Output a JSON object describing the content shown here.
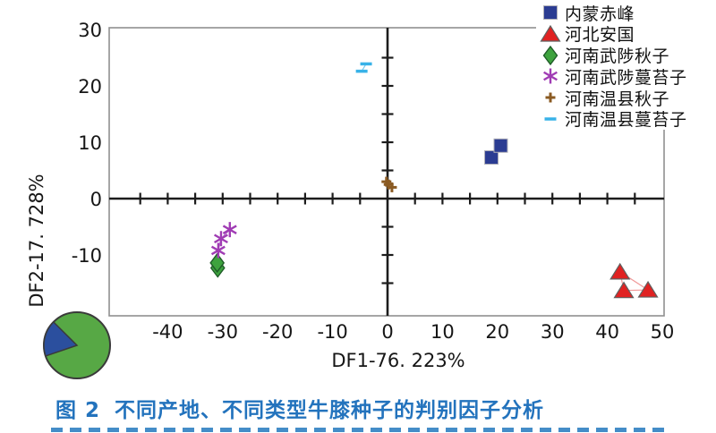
{
  "figure": {
    "caption_prefix": "图 2",
    "caption_text": "不同产地、不同类型牛膝种子的判别因子分析",
    "caption_color": "#2373bd"
  },
  "chart_data": {
    "type": "scatter",
    "title": "",
    "xlabel": "DF1-76. 223%",
    "ylabel": "DF2-17. 728%",
    "xlim": [
      -50.7,
      50.3
    ],
    "ylim": [
      -20.9,
      30.3
    ],
    "x_ticks_labeled": [
      -40,
      -30,
      -20,
      -10,
      0,
      10,
      20,
      30,
      40,
      50
    ],
    "y_ticks_labeled": [
      30,
      20,
      10,
      0,
      -10
    ],
    "minor_tick_step": 5,
    "grid": false,
    "legend_position": "top-right",
    "series": [
      {
        "name": "内蒙赤峰",
        "marker": "square",
        "color": "#2b3c92",
        "points": [
          [
            18.9,
            7.3
          ],
          [
            20.6,
            9.4
          ]
        ]
      },
      {
        "name": "河北安国",
        "marker": "triangle",
        "color": "#e02222",
        "connect": "loop",
        "line_color": "#f09a9a",
        "points": [
          [
            42.3,
            -13.0
          ],
          [
            43.0,
            -16.3
          ],
          [
            47.4,
            -16.2
          ]
        ]
      },
      {
        "name": "河南武陟秋子",
        "marker": "diamond",
        "color": "#3ea33e",
        "points": [
          [
            -30.9,
            -12.3
          ],
          [
            -31.0,
            -11.4
          ]
        ]
      },
      {
        "name": "河南武陟蔓苔子",
        "marker": "asterisk",
        "color": "#a03cb4",
        "connect": "chain",
        "line_color": "#b470c8",
        "points": [
          [
            -28.7,
            -5.5
          ],
          [
            -30.3,
            -7.1
          ],
          [
            -30.8,
            -9.2
          ]
        ]
      },
      {
        "name": "河南温县秋子",
        "marker": "plus",
        "color": "#8a5a22",
        "points": [
          [
            -0.2,
            3.0
          ],
          [
            0.2,
            2.5
          ],
          [
            0.8,
            2.0
          ]
        ]
      },
      {
        "name": "河南温县蔓苔子",
        "marker": "dash",
        "color": "#38b2e8",
        "connect": "chain",
        "line_color": "#7accee",
        "points": [
          [
            -3.9,
            23.9
          ],
          [
            -4.7,
            22.6
          ]
        ]
      }
    ],
    "inset_pie": {
      "slices": [
        {
          "value": 82.3,
          "color": "#57a845"
        },
        {
          "value": 17.7,
          "color": "#2b4f9e"
        }
      ]
    }
  }
}
